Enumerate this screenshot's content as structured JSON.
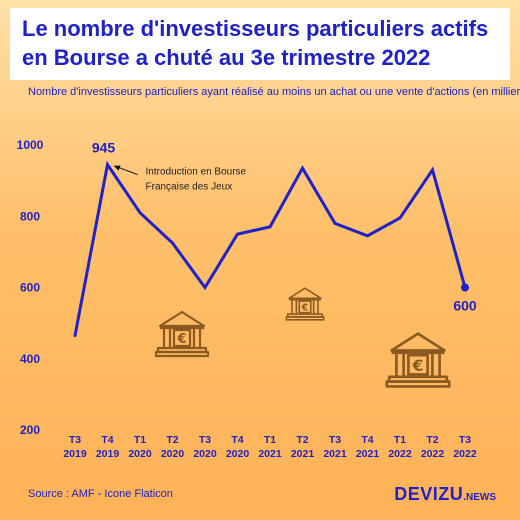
{
  "title_lines": [
    "Le nombre d'investisseurs particuliers actifs",
    "en Bourse a chuté au 3e trimestre 2022"
  ],
  "subtitle": "Nombre d'investisseurs particuliers ayant réalisé au moins un achat ou une vente d'actions (en milliers)",
  "source": "Source : AMF - Icone Flaticon",
  "brand": {
    "name": "DEVIZU",
    "suffix": ".NEWS"
  },
  "colors": {
    "line": "#1f22c9",
    "text": "#1f22c9",
    "icon": "#8a5a20"
  },
  "icons": [
    "bank-euro-icon",
    "bank-euro-icon",
    "bank-euro-icon"
  ],
  "chart_data": {
    "type": "line",
    "categories": [
      "T3 2019",
      "T4 2019",
      "T1 2020",
      "T2 2020",
      "T3 2020",
      "T4 2020",
      "T1 2021",
      "T2 2021",
      "T3 2021",
      "T4 2021",
      "T1 2022",
      "T2 2022",
      "T3 2022"
    ],
    "category_lines": [
      [
        "T3",
        "2019"
      ],
      [
        "T4",
        "2019"
      ],
      [
        "T1",
        "2020"
      ],
      [
        "T2",
        "2020"
      ],
      [
        "T3",
        "2020"
      ],
      [
        "T4",
        "2020"
      ],
      [
        "T1",
        "2021"
      ],
      [
        "T2",
        "2021"
      ],
      [
        "T3",
        "2021"
      ],
      [
        "T4",
        "2021"
      ],
      [
        "T1",
        "2022"
      ],
      [
        "T2",
        "2022"
      ],
      [
        "T3",
        "2022"
      ]
    ],
    "values": [
      465,
      945,
      810,
      725,
      600,
      750,
      770,
      935,
      780,
      745,
      795,
      930,
      600
    ],
    "yticks": [
      200,
      400,
      600,
      800,
      1000
    ],
    "ylim": [
      200,
      1000
    ],
    "grid": false,
    "data_labels": [
      {
        "index": 1,
        "text": "945"
      },
      {
        "index": 12,
        "text": "600"
      }
    ],
    "annotation": {
      "index": 1,
      "lines": [
        "Introduction en Bourse",
        "Française des Jeux"
      ]
    }
  }
}
